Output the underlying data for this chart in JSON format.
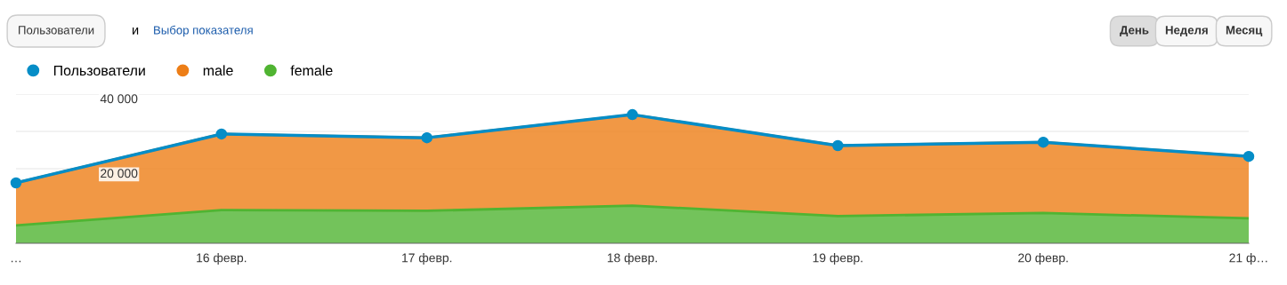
{
  "chart_data": {
    "type": "area",
    "stacked": true,
    "categories": [
      "…",
      "16 февр.",
      "17 февр.",
      "18 февр.",
      "19 февр.",
      "20 февр.",
      "21 ф…"
    ],
    "series": [
      {
        "name": "Пользователи",
        "type": "line",
        "marker": "circle",
        "color": "#058dc7",
        "values": [
          16200,
          29300,
          28300,
          34500,
          26200,
          27100,
          23300
        ]
      },
      {
        "name": "male",
        "color": "#ed7e17",
        "values": [
          11400,
          20400,
          19600,
          24400,
          18900,
          19000,
          16600
        ]
      },
      {
        "name": "female",
        "color": "#50b432",
        "values": [
          4800,
          8900,
          8700,
          10100,
          7300,
          8100,
          6700
        ]
      }
    ],
    "ylim": [
      0,
      40000
    ],
    "yticks": [
      {
        "value": 20000,
        "label": "20 000"
      },
      {
        "value": 30000,
        "label": null
      },
      {
        "value": 40000,
        "label": "40 000"
      }
    ],
    "grid": "y",
    "legend": "top left",
    "annotations": [
      "Пользователи",
      "и",
      "Выбор показателя",
      "День",
      "Неделя",
      "Месяц"
    ]
  }
}
